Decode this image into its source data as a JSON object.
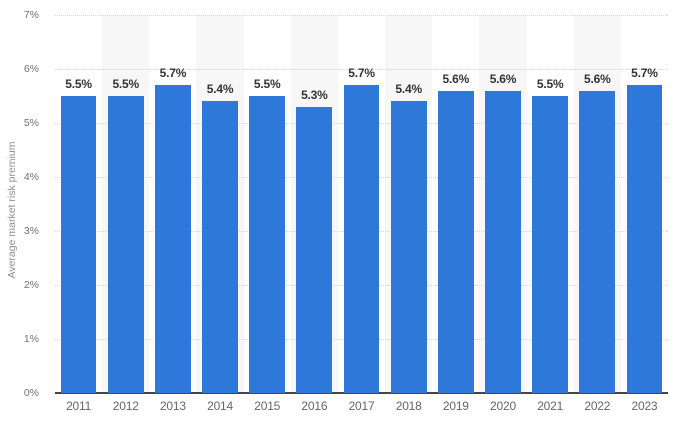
{
  "chart_data": {
    "type": "bar",
    "title": "",
    "xlabel": "",
    "ylabel": "Average market risk premium",
    "categories": [
      "2011",
      "2012",
      "2013",
      "2014",
      "2015",
      "2016",
      "2017",
      "2018",
      "2019",
      "2020",
      "2021",
      "2022",
      "2023"
    ],
    "values": [
      5.5,
      5.5,
      5.7,
      5.4,
      5.5,
      5.3,
      5.7,
      5.4,
      5.6,
      5.6,
      5.5,
      5.6,
      5.7
    ],
    "data_labels": [
      "5.5%",
      "5.5%",
      "5.7%",
      "5.4%",
      "5.5%",
      "5.3%",
      "5.7%",
      "5.4%",
      "5.6%",
      "5.6%",
      "5.5%",
      "5.6%",
      "5.7%"
    ],
    "ylim": [
      0,
      7
    ],
    "ytick_values": [
      0,
      1,
      2,
      3,
      4,
      5,
      6,
      7
    ],
    "ytick_labels": [
      "0%",
      "1%",
      "2%",
      "3%",
      "4%",
      "5%",
      "6%",
      "7%"
    ],
    "grid": "horizontal-dotted",
    "legend": "none",
    "colors": {
      "bar": "#2e78d9",
      "plot_band": "#f7f7f7",
      "gridline": "#d6d6d6",
      "baseline": "#454545",
      "data_label": "#333333",
      "x_tick": "#666666",
      "y_tick": "#737373",
      "axis_title": "#8f8f8f"
    },
    "plot_bands": "alternating columns shaded (2012, 2014, 2016, 2018, 2020, 2022)"
  }
}
